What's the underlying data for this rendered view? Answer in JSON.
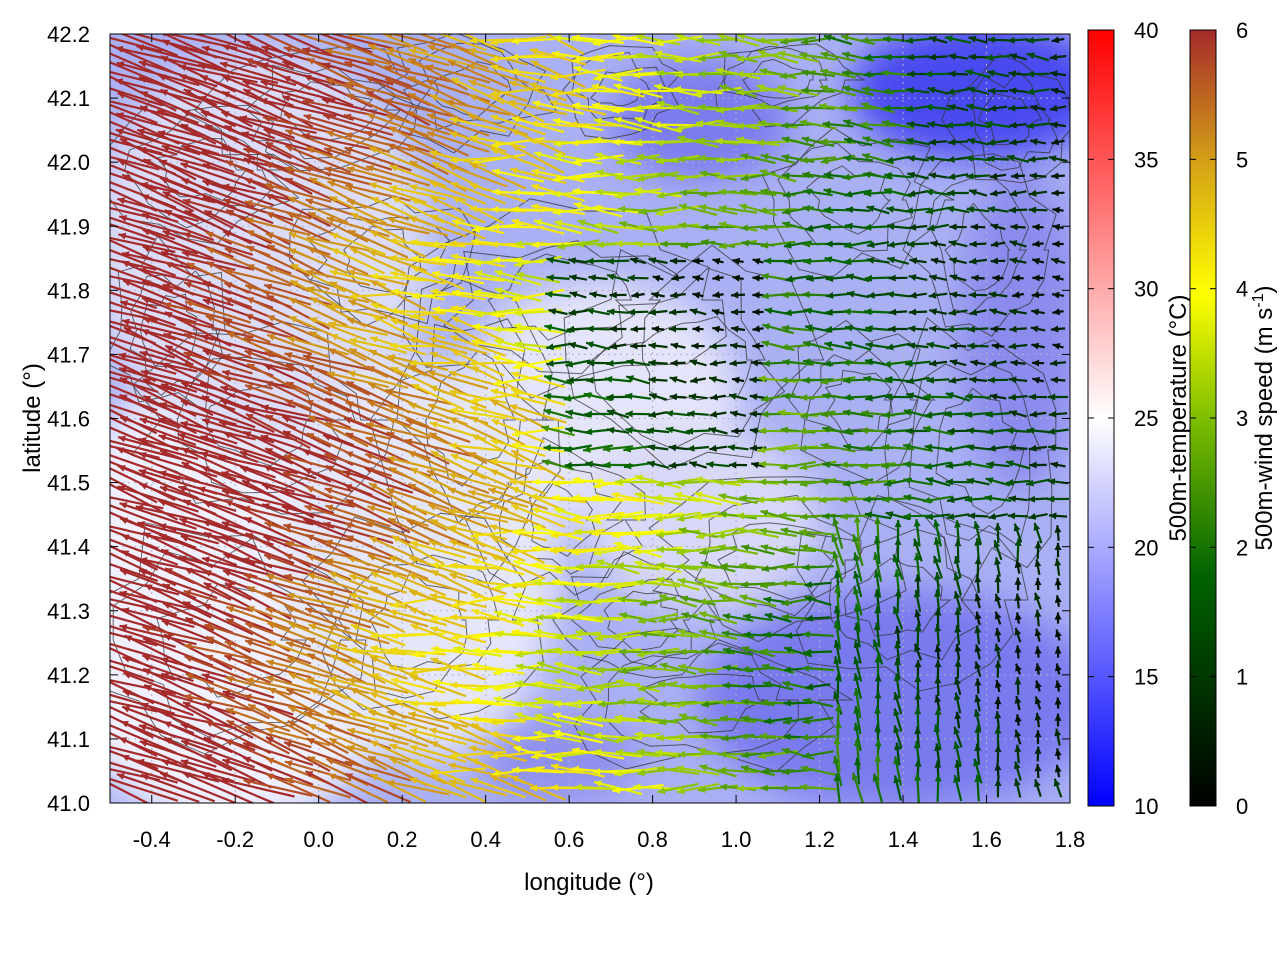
{
  "chart_data": {
    "type": "heatmap",
    "overlays": [
      "vector-field",
      "contour"
    ],
    "xlabel": "longitude (°)",
    "ylabel": "latitude (°)",
    "xlim": [
      -0.5,
      1.8
    ],
    "ylim": [
      41.0,
      42.2
    ],
    "x_ticks": [
      "-0.4",
      "-0.2",
      "0.0",
      "0.2",
      "0.4",
      "0.6",
      "0.8",
      "1.0",
      "1.2",
      "1.4",
      "1.6",
      "1.8"
    ],
    "y_ticks": [
      "41.0",
      "41.1",
      "41.2",
      "41.3",
      "41.4",
      "41.5",
      "41.6",
      "41.7",
      "41.8",
      "41.9",
      "42.0",
      "42.1",
      "42.2"
    ],
    "grid": true,
    "temperature_colorbar": {
      "label": "500m-temperature (°C)",
      "range": [
        10,
        40
      ],
      "ticks": [
        "10",
        "15",
        "20",
        "25",
        "30",
        "35",
        "40"
      ],
      "colors": [
        "#0000ff",
        "#ffffff",
        "#ff0000"
      ]
    },
    "wind_colorbar": {
      "label": "500m-wind speed (m s",
      "label_sup": "-1",
      "label_end": ")",
      "range": [
        0,
        6
      ],
      "ticks": [
        "0",
        "1",
        "2",
        "3",
        "4",
        "5",
        "6"
      ],
      "colors": [
        "#000000",
        "#006400",
        "#7fbf00",
        "#ffff00",
        "#d4a017",
        "#b8651b",
        "#a52a2a"
      ]
    }
  }
}
